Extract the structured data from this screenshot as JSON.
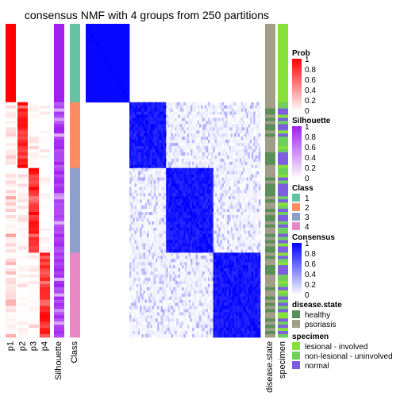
{
  "chart_data": {
    "type": "heatmap",
    "title": "consensus NMF with 4 groups from 250 partitions",
    "n_samples": 100,
    "groups": [
      {
        "class": "1",
        "count": 25
      },
      {
        "class": "2",
        "count": 21
      },
      {
        "class": "3",
        "count": 27
      },
      {
        "class": "4",
        "count": 27
      }
    ],
    "probability_columns": [
      "p1",
      "p2",
      "p3",
      "p4"
    ],
    "annotation_columns": [
      "Silhouette",
      "Class"
    ],
    "right_annotation_columns": [
      "disease.state",
      "specimen"
    ],
    "legends": {
      "prob": {
        "title": "Prob",
        "ticks": [
          "1",
          "0.8",
          "0.6",
          "0.4",
          "0.2",
          "0"
        ],
        "low_color": "#ffffff",
        "high_color": "#ff0000"
      },
      "silhouette": {
        "title": "Silhouette",
        "ticks": [
          "1",
          "0.8",
          "0.6",
          "0.4",
          "0.2",
          "0"
        ],
        "low_color": "#ffffff",
        "high_color": "#a020f0"
      },
      "class": {
        "title": "Class",
        "items": [
          {
            "label": "1",
            "color": "#66c2a5"
          },
          {
            "label": "2",
            "color": "#fc8d62"
          },
          {
            "label": "3",
            "color": "#8da0cb"
          },
          {
            "label": "4",
            "color": "#e78ac3"
          }
        ]
      },
      "consensus": {
        "title": "Consensus",
        "ticks": [
          "1",
          "0.8",
          "0.6",
          "0.4",
          "0.2",
          "0"
        ],
        "low_color": "#ffffff",
        "high_color": "#0000ff"
      },
      "disease_state": {
        "title": "disease.state",
        "items": [
          {
            "label": "healthy",
            "color": "#5a8f5a"
          },
          {
            "label": "psoriasis",
            "color": "#a09e87"
          }
        ]
      },
      "specimen": {
        "title": "specimen",
        "items": [
          {
            "label": "lesional - involved",
            "color": "#86e03a"
          },
          {
            "label": "non-lesional - uninvolved",
            "color": "#6ecf5a"
          },
          {
            "label": "normal",
            "color": "#7b5fe0"
          }
        ]
      }
    }
  }
}
